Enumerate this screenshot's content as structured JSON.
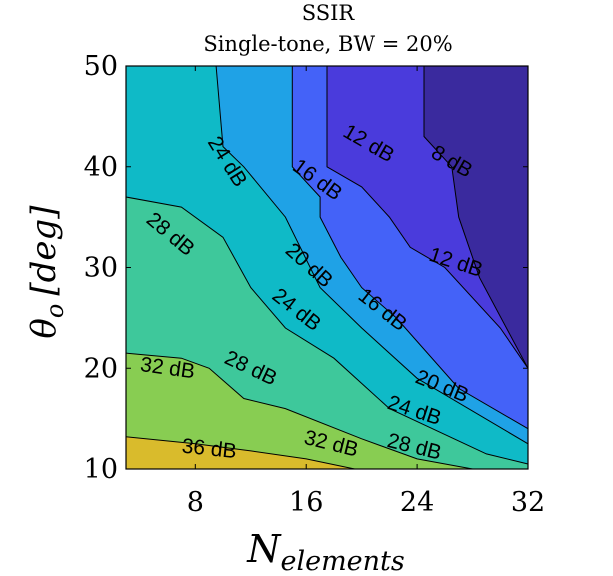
{
  "chart_data": {
    "type": "contour",
    "title": "SSIR",
    "subtitle": "Single-tone, BW = 20%",
    "xlabel": "N",
    "xlabel_sub": "elements",
    "ylabel": "θ",
    "ylabel_sub": "o",
    "ylabel_unit": "[deg]",
    "xlim": [
      3,
      32
    ],
    "ylim": [
      10,
      50
    ],
    "xticks": [
      "8",
      "16",
      "24",
      "32"
    ],
    "yticks": [
      "10",
      "20",
      "30",
      "40",
      "50"
    ],
    "grid": false,
    "levels": [
      {
        "level": 8,
        "label": "8 dB",
        "color": "#3a2a9e",
        "contour": [
          [
            24.5,
            50
          ],
          [
            24.5,
            43
          ],
          [
            26.5,
            40
          ],
          [
            27,
            35
          ],
          [
            28.5,
            29
          ],
          [
            32,
            20
          ]
        ]
      },
      {
        "level": 12,
        "label": "12 dB",
        "color": "#4a3bdc",
        "contour": [
          [
            17.5,
            50
          ],
          [
            17.5,
            40
          ],
          [
            20,
            38
          ],
          [
            22,
            35
          ],
          [
            23.5,
            32
          ],
          [
            26,
            30
          ],
          [
            30,
            24
          ],
          [
            32,
            20
          ]
        ]
      },
      {
        "level": 16,
        "label": "16 dB",
        "color": "#4462f8",
        "contour": [
          [
            15,
            50
          ],
          [
            15,
            40
          ],
          [
            17,
            37
          ],
          [
            17,
            35
          ],
          [
            18.5,
            31
          ],
          [
            20,
            28
          ],
          [
            22.5,
            25
          ],
          [
            27,
            18
          ],
          [
            32,
            14
          ]
        ]
      },
      {
        "level": 20,
        "label": "20 dB",
        "color": "#1fa2e6",
        "contour": [
          [
            9.5,
            50
          ],
          [
            10,
            42
          ],
          [
            11.5,
            40
          ],
          [
            14.5,
            35
          ],
          [
            17,
            28
          ],
          [
            20,
            24
          ],
          [
            24,
            19
          ],
          [
            32,
            12.5
          ]
        ]
      },
      {
        "level": 24,
        "label": "24 dB",
        "color": "#0fbac7",
        "contour": [
          [
            3,
            37
          ],
          [
            7,
            36
          ],
          [
            10,
            33
          ],
          [
            12,
            28
          ],
          [
            14.5,
            24
          ],
          [
            18,
            21
          ],
          [
            22,
            16
          ],
          [
            29,
            11.5
          ],
          [
            32,
            10.5
          ]
        ]
      },
      {
        "level": 28,
        "label": "28 dB",
        "color": "#3ec89b",
        "contour": [
          [
            3,
            21.5
          ],
          [
            7,
            21
          ],
          [
            9,
            20
          ],
          [
            11.5,
            17
          ],
          [
            14.5,
            16
          ],
          [
            20,
            13
          ],
          [
            24,
            11
          ],
          [
            28,
            10
          ]
        ]
      },
      {
        "level": 32,
        "label": "32 dB",
        "color": "#88cd52",
        "contour": [
          [
            3,
            13.2
          ],
          [
            8,
            12.5
          ],
          [
            12,
            11.8
          ],
          [
            16,
            11
          ],
          [
            19.5,
            10
          ]
        ]
      },
      {
        "level": 36,
        "label": "36 dB",
        "color": "#d9bb2c"
      }
    ],
    "labels": [
      {
        "text": "8 dB",
        "x": 26.5,
        "y": 40.5,
        "rot": 30
      },
      {
        "text": "12 dB",
        "x": 20.5,
        "y": 42.3,
        "rot": 30
      },
      {
        "text": "12 dB",
        "x": 26.8,
        "y": 30.5,
        "rot": 18
      },
      {
        "text": "16 dB",
        "x": 16.8,
        "y": 38.7,
        "rot": 36
      },
      {
        "text": "16 dB",
        "x": 21.5,
        "y": 25.8,
        "rot": 38
      },
      {
        "text": "20 dB",
        "x": 16.2,
        "y": 30.2,
        "rot": 42
      },
      {
        "text": "20 dB",
        "x": 25.8,
        "y": 18.2,
        "rot": 22
      },
      {
        "text": "24 dB",
        "x": 10.3,
        "y": 40.5,
        "rot": 58
      },
      {
        "text": "24 dB",
        "x": 15.3,
        "y": 25.8,
        "rot": 38
      },
      {
        "text": "24 dB",
        "x": 23.8,
        "y": 15.8,
        "rot": 18
      },
      {
        "text": "28 dB",
        "x": 6.2,
        "y": 33.3,
        "rot": 40
      },
      {
        "text": "28 dB",
        "x": 12.0,
        "y": 20.0,
        "rot": 25
      },
      {
        "text": "28 dB",
        "x": 23.8,
        "y": 12.2,
        "rot": 14
      },
      {
        "text": "32 dB",
        "x": 6.0,
        "y": 20.0,
        "rot": 8
      },
      {
        "text": "32 dB",
        "x": 17.8,
        "y": 12.5,
        "rot": 14
      },
      {
        "text": "36 dB",
        "x": 9.0,
        "y": 12.0,
        "rot": 6
      }
    ]
  }
}
